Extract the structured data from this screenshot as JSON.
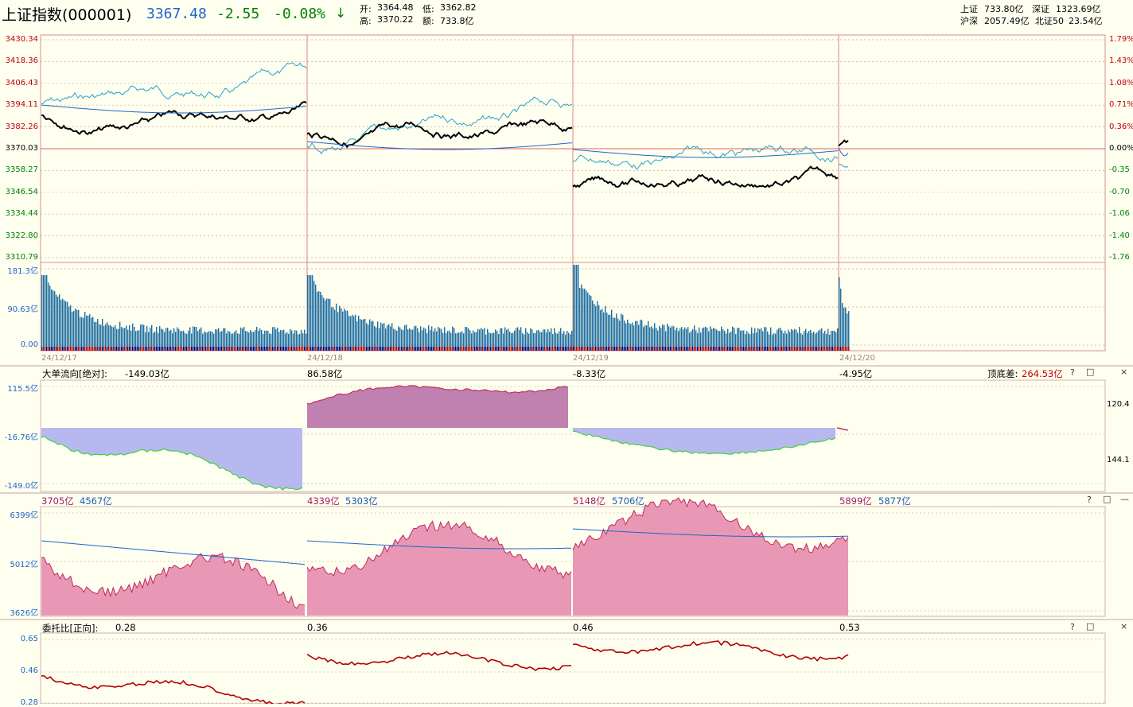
{
  "header": {
    "title": "上证指数(000001)",
    "price": "3367.48",
    "change": "-2.55",
    "change_pct": "-0.08%",
    "arrow": "↓",
    "open_label": "开:",
    "open": "3364.48",
    "low_label": "低:",
    "low": "3362.82",
    "high_label": "高:",
    "high": "3370.22",
    "amount_label": "额:",
    "amount": "733.8亿",
    "sh_label": "上证",
    "sh": "733.80亿",
    "sz_label": "深证",
    "sz": "1323.69亿",
    "hs_label": "沪深",
    "hs": "2057.49亿",
    "bz_label": "北证50",
    "bz": "23.54亿"
  },
  "colors": {
    "up": "#c00000",
    "down": "#008000",
    "price_blue": "#1e64c8",
    "bg": "#fffff0",
    "grid": "#c8a0a0"
  },
  "main_chart": {
    "y_left": [
      "3430.34",
      "3418.36",
      "3406.43",
      "3394.11",
      "3382.26",
      "3370.03",
      "3358.27",
      "3346.54",
      "3334.44",
      "3322.80",
      "3310.79"
    ],
    "y_right": [
      "1.79%",
      "1.43%",
      "1.08%",
      "0.71%",
      "0.36%",
      "0.00%",
      "-0.35",
      "-0.70",
      "-1.06",
      "-1.40",
      "-1.76"
    ],
    "volume_labels": [
      "181.3亿",
      "90.63亿",
      "0.00"
    ],
    "dates": [
      "24/12/17",
      "24/12/18",
      "24/12/19",
      "24/12/20"
    ]
  },
  "panel_flow": {
    "title": "大单流向[绝对]:",
    "values": [
      "-149.03亿",
      "86.58亿",
      "-8.33亿",
      "-4.95亿"
    ],
    "bottom_diff_label": "顶底差:",
    "bottom_diff": "264.53亿",
    "y_left": [
      "115.5亿",
      "-16.76亿",
      "-149.0亿"
    ],
    "y_right": [
      "120.4",
      "144.1"
    ],
    "controls": [
      "?",
      "□",
      "×"
    ]
  },
  "panel_turnover": {
    "pairs": [
      [
        "3705亿",
        "4567亿"
      ],
      [
        "4339亿",
        "5303亿"
      ],
      [
        "5148亿",
        "5706亿"
      ],
      [
        "5899亿",
        "5877亿"
      ]
    ],
    "y_left": [
      "6399亿",
      "5012亿",
      "3626亿"
    ],
    "controls": [
      "?",
      "□",
      "—"
    ]
  },
  "panel_ratio": {
    "title": "委托比[正向]:",
    "values": [
      "0.28",
      "0.36",
      "0.46",
      "0.53"
    ],
    "y_left": [
      "0.65",
      "0.46",
      "0.28"
    ],
    "controls": [
      "?",
      "□",
      "×"
    ]
  }
}
